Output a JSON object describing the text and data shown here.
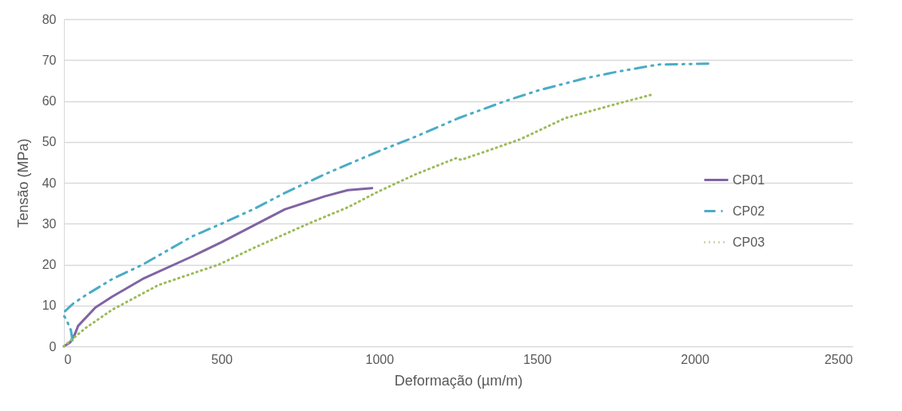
{
  "chart_data": {
    "type": "line",
    "xlabel": "Deformação (µm/m)",
    "ylabel": "Tensão (MPa)",
    "xlim": [
      0,
      2500
    ],
    "xticks": [
      0,
      500,
      1000,
      1500,
      2000,
      2500
    ],
    "ylim": [
      0,
      80
    ],
    "yticks": [
      0,
      10,
      20,
      30,
      40,
      50,
      60,
      70,
      80
    ],
    "grid": "y",
    "legend": "right",
    "marker": "none",
    "series": [
      {
        "name": "CP01",
        "color": "#8064a2",
        "line_style": "solid",
        "x": [
          0,
          20,
          35,
          45,
          100,
          154,
          250,
          407,
          500,
          600,
          700,
          828,
          900,
          977
        ],
        "values": [
          0,
          1,
          3,
          5,
          9.5,
          12.2,
          16.5,
          22,
          25.5,
          29.5,
          33.5,
          36.7,
          38.2,
          38.7
        ]
      },
      {
        "name": "CP02",
        "color": "#4bacc6",
        "line_style": "dashed",
        "x": [
          27,
          22,
          8,
          0,
          2,
          30,
          69,
          154,
          250,
          407,
          500,
          600,
          700,
          828,
          998,
          1116,
          1251,
          1400,
          1505,
          1650,
          1758,
          1884,
          2044
        ],
        "values": [
          1.5,
          4,
          6.5,
          7.5,
          8.5,
          10.5,
          12.5,
          16.5,
          20,
          26.9,
          30,
          33.5,
          37.5,
          42.1,
          47.7,
          51.3,
          55.8,
          60,
          62.6,
          65.5,
          67.2,
          68.9,
          69.1
        ]
      },
      {
        "name": "CP03",
        "color": "#9bbb59",
        "line_style": "dotted",
        "x": [
          0,
          30,
          69,
          154,
          300,
          491,
          600,
          778,
          900,
          998,
          1116,
          1243,
          1260,
          1446,
          1589,
          1758,
          1872
        ],
        "values": [
          0,
          2,
          4.5,
          9,
          15,
          20,
          24,
          30.1,
          34,
          37.9,
          42.1,
          46,
          45.6,
          50.6,
          55.8,
          59.4,
          61.7
        ]
      }
    ]
  }
}
